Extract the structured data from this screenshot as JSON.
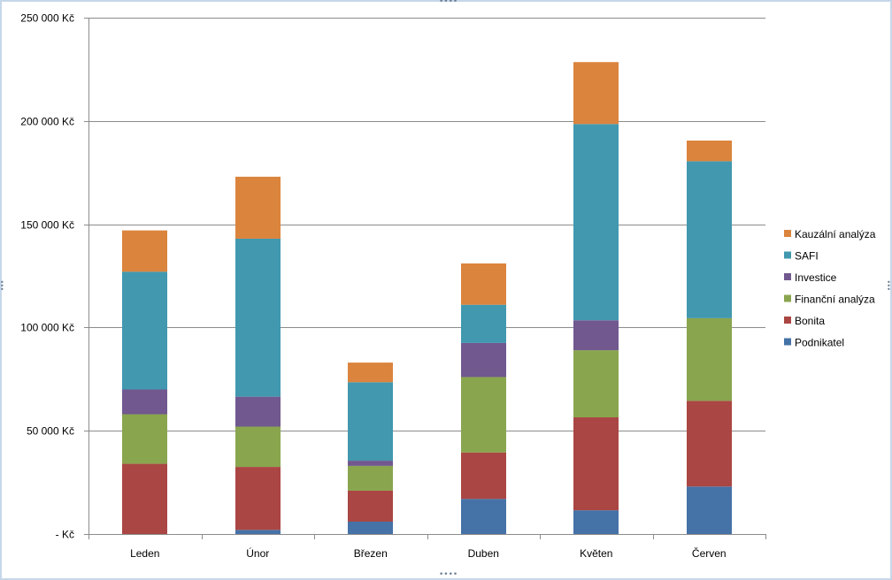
{
  "chart_data": {
    "type": "bar",
    "stacked": true,
    "categories": [
      "Leden",
      "Únor",
      "Březen",
      "Duben",
      "Květen",
      "Červen"
    ],
    "series": [
      {
        "name": "Podnikatel",
        "color": "#4572a7",
        "values": [
          0,
          2000,
          6000,
          17000,
          11500,
          23000
        ]
      },
      {
        "name": "Bonita",
        "color": "#aa4643",
        "values": [
          34000,
          30500,
          15000,
          22500,
          45000,
          41500
        ]
      },
      {
        "name": "Finanční analýza",
        "color": "#89a54e",
        "values": [
          24000,
          19500,
          12000,
          36500,
          32500,
          40000
        ]
      },
      {
        "name": "Investice",
        "color": "#71588f",
        "values": [
          12000,
          14500,
          2500,
          16500,
          14500,
          0
        ]
      },
      {
        "name": "SAFI",
        "color": "#4198af",
        "values": [
          57000,
          76500,
          38000,
          18500,
          95000,
          76000
        ]
      },
      {
        "name": "Kauzální analýza",
        "color": "#db843d",
        "values": [
          20000,
          30000,
          9500,
          20000,
          30000,
          10000
        ]
      }
    ],
    "ylim": [
      0,
      250000
    ],
    "yticks": [
      {
        "value": 0,
        "label": "-   Kč"
      },
      {
        "value": 50000,
        "label": "50 000 Kč"
      },
      {
        "value": 100000,
        "label": "100 000 Kč"
      },
      {
        "value": 150000,
        "label": "150 000 Kč"
      },
      {
        "value": 200000,
        "label": "200 000 Kč"
      },
      {
        "value": 250000,
        "label": "250 000 Kč"
      }
    ],
    "title": "",
    "xlabel": "",
    "ylabel": "",
    "grid": true,
    "legend": {
      "placement": "right",
      "order": [
        "Kauzální analýza",
        "SAFI",
        "Investice",
        "Finanční analýza",
        "Bonita",
        "Podnikatel"
      ]
    }
  }
}
